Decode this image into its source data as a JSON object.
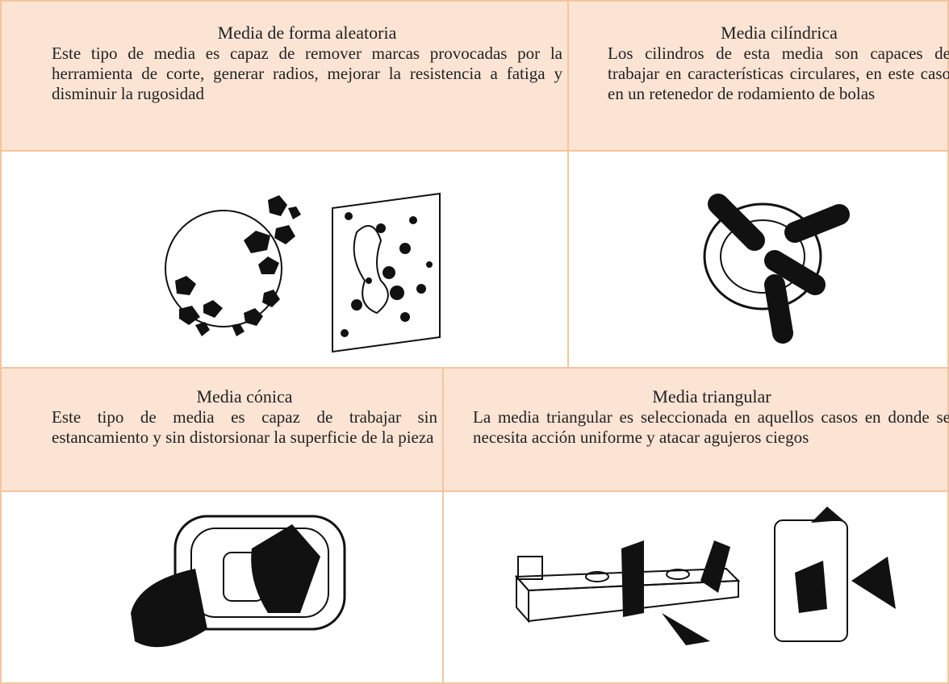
{
  "cells": [
    {
      "title": "Media de forma aleatoria",
      "description": "Este tipo de media es capaz de remover marcas provocadas por la herramienta de corte, generar radios, mejorar la resistencia a fatiga y disminuir la rugosidad"
    },
    {
      "title": "Media cilíndrica",
      "description": "Los cilindros de esta media son capaces de trabajar en características circulares, en este caso en un retenedor de rodamiento de bolas"
    },
    {
      "title": "Media cónica",
      "description": "Este tipo de media es capaz de trabajar sin estancamiento y sin distorsionar la superficie de la pieza"
    },
    {
      "title": "Media triangular",
      "description": "La media triangular es seleccionada en aquellos casos en donde se necesita acción uniforme y atacar agujeros ciegos"
    }
  ]
}
